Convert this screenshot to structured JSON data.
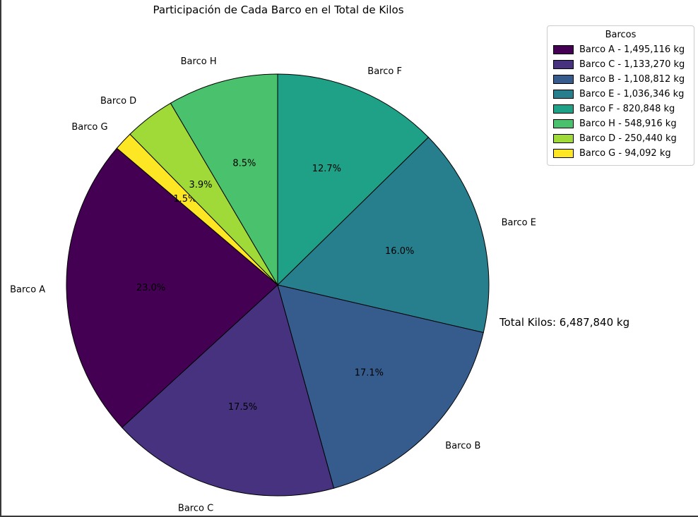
{
  "window": {
    "background": "#ffffff",
    "edge_color": "#3a3a3a"
  },
  "chart_data": {
    "type": "pie",
    "title": "Participación de Cada Barco en el Total de Kilos",
    "total_annotation": "Total Kilos: 6,487,840 kg",
    "total_kg": 6487840,
    "start_angle_deg": 90,
    "direction": "clockwise",
    "slice_edge_color": "#000000",
    "slices": [
      {
        "label": "Barco F",
        "kg": 820848,
        "pct_label": "12.7%",
        "color": "#1fa187"
      },
      {
        "label": "Barco E",
        "kg": 1036346,
        "pct_label": "16.0%",
        "color": "#277f8e"
      },
      {
        "label": "Barco B",
        "kg": 1108812,
        "pct_label": "17.1%",
        "color": "#365c8d"
      },
      {
        "label": "Barco C",
        "kg": 1133270,
        "pct_label": "17.5%",
        "color": "#46327e"
      },
      {
        "label": "Barco A",
        "kg": 1495116,
        "pct_label": "23.0%",
        "color": "#440154"
      },
      {
        "label": "Barco G",
        "kg": 94092,
        "pct_label": "1.5%",
        "color": "#fde725"
      },
      {
        "label": "Barco D",
        "kg": 250440,
        "pct_label": "3.9%",
        "color": "#a0da39"
      },
      {
        "label": "Barco H",
        "kg": 548916,
        "pct_label": "8.5%",
        "color": "#4ac16d"
      }
    ],
    "legend": {
      "title": "Barcos",
      "position": "upper right",
      "entries": [
        {
          "label": "Barco A - 1,495,116 kg",
          "color": "#440154"
        },
        {
          "label": "Barco C - 1,133,270 kg",
          "color": "#46327e"
        },
        {
          "label": "Barco B - 1,108,812 kg",
          "color": "#365c8d"
        },
        {
          "label": "Barco E - 1,036,346 kg",
          "color": "#277f8e"
        },
        {
          "label": "Barco F - 820,848 kg",
          "color": "#1fa187"
        },
        {
          "label": "Barco H - 548,916 kg",
          "color": "#4ac16d"
        },
        {
          "label": "Barco D - 250,440 kg",
          "color": "#a0da39"
        },
        {
          "label": "Barco G - 94,092 kg",
          "color": "#fde725"
        }
      ]
    }
  }
}
